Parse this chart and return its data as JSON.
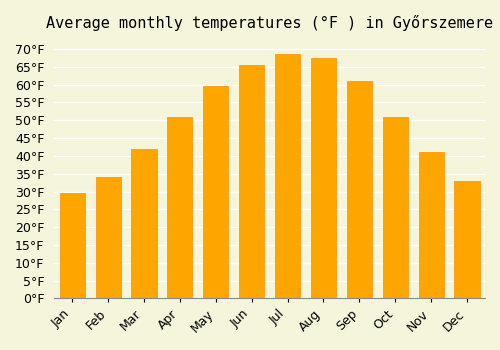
{
  "title": "Average monthly temperatures (°F ) in Győrszemere",
  "months": [
    "Jan",
    "Feb",
    "Mar",
    "Apr",
    "May",
    "Jun",
    "Jul",
    "Aug",
    "Sep",
    "Oct",
    "Nov",
    "Dec"
  ],
  "values": [
    29.5,
    34.0,
    42.0,
    51.0,
    59.5,
    65.5,
    68.5,
    67.5,
    61.0,
    51.0,
    41.0,
    33.0
  ],
  "bar_color": "#FFA500",
  "bar_edge_color": "#FF8C00",
  "background_color": "#F5F5DC",
  "grid_color": "#FFFFFF",
  "ylim": [
    0,
    72
  ],
  "ytick_step": 5,
  "title_fontsize": 11,
  "tick_fontsize": 9
}
